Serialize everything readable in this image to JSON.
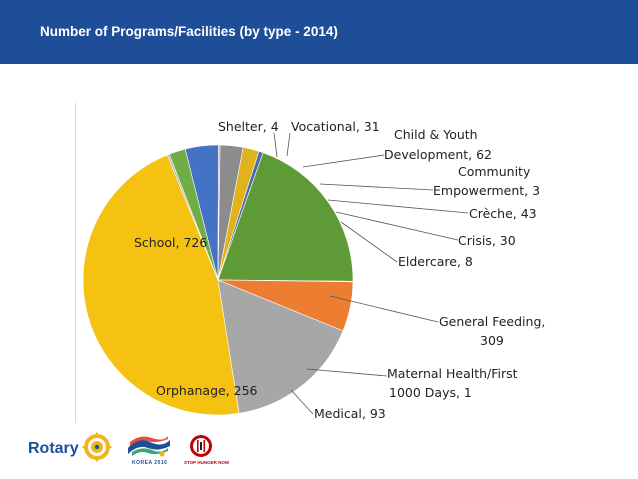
{
  "header": {
    "title": "Number of Programs/Facilities (by type - 2014)"
  },
  "chart_data": {
    "type": "pie",
    "categories": [
      "School",
      "Shelter",
      "Vocational",
      "Child & Youth Development",
      "Community Empowerment",
      "Crèche",
      "Crisis",
      "Eldercare",
      "General Feeding",
      "Maternal Health/First 1000 Days",
      "Medical",
      "Orphanage"
    ],
    "values": [
      726,
      4,
      31,
      62,
      3,
      43,
      30,
      8,
      309,
      1,
      93,
      256
    ],
    "colors": [
      "#f5c211",
      "#b5b5b5",
      "#70ad47",
      "#4472c4",
      "#a5a5a5",
      "#8c8c8c",
      "#e0b21c",
      "#4b6ba7",
      "#5e9b37",
      "#2e4e89",
      "#ed7d31",
      "#a7a7a7"
    ],
    "labels": {
      "school": "School, 726",
      "shelter": "Shelter, 4",
      "vocational": "Vocational, 31",
      "child_youth_1": "Child & Youth",
      "child_youth_2": "Development, 62",
      "community_1": "Community",
      "community_2": "Empowerment, 3",
      "creche": "Crèche, 43",
      "crisis": "Crisis, 30",
      "eldercare": "Eldercare, 8",
      "general_feeding_1": "General Feeding,",
      "general_feeding_2": "309",
      "maternal_1": "Maternal Health/First",
      "maternal_2": "1000 Days, 1",
      "medical": "Medical, 93",
      "orphanage": "Orphanage, 256"
    }
  },
  "footer": {
    "rotary": "Rotary",
    "korea": "KOREA 2016",
    "hunger": "STOP HUNGER NOW"
  }
}
